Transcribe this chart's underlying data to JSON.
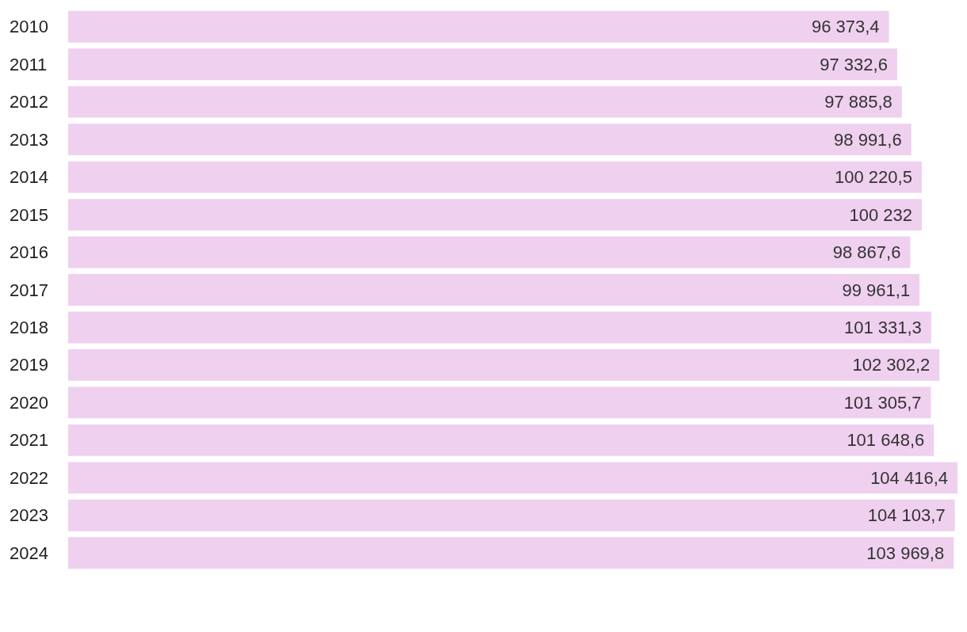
{
  "chart_data": {
    "type": "bar",
    "orientation": "horizontal",
    "categories": [
      "2010",
      "2011",
      "2012",
      "2013",
      "2014",
      "2015",
      "2016",
      "2017",
      "2018",
      "2019",
      "2020",
      "2021",
      "2022",
      "2023",
      "2024"
    ],
    "values": [
      96373.4,
      97332.6,
      97885.8,
      98991.6,
      100220.5,
      100232,
      98867.6,
      99961.1,
      101331.3,
      102302.2,
      101305.7,
      101648.6,
      104416.4,
      104103.7,
      103969.8
    ],
    "value_labels": [
      "96 373,4",
      "97 332,6",
      "97 885,8",
      "98 991,6",
      "100 220,5",
      "100 232",
      "98 867,6",
      "99 961,1",
      "101 331,3",
      "102 302,2",
      "101 305,7",
      "101 648,6",
      "104 416,4",
      "104 103,7",
      "103 969,8"
    ],
    "color": "#efd0ef"
  }
}
